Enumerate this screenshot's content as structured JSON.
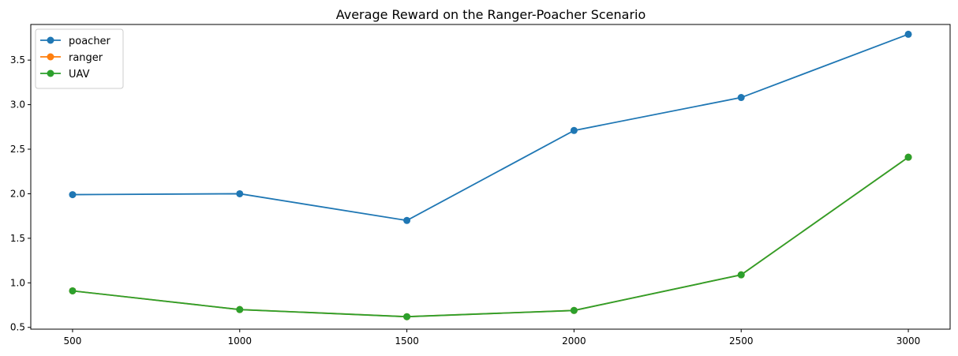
{
  "chart_data": {
    "type": "line",
    "title": "Average Reward on the Ranger-Poacher Scenario",
    "xlabel": "",
    "ylabel": "",
    "x": [
      500,
      1000,
      1500,
      2000,
      2500,
      3000
    ],
    "x_ticks": [
      500,
      1000,
      1500,
      2000,
      2500,
      3000
    ],
    "y_ticks": [
      0.5,
      1.0,
      1.5,
      2.0,
      2.5,
      3.0,
      3.5
    ],
    "y_tick_labels": [
      "0.5",
      "1.0",
      "1.5",
      "2.0",
      "2.5",
      "3.0",
      "3.5"
    ],
    "xlim": [
      375,
      3125
    ],
    "ylim": [
      0.48,
      3.9
    ],
    "grid": false,
    "legend_position": "top-left",
    "marker": "circle",
    "series": [
      {
        "name": "poacher",
        "color": "#1f77b4",
        "values": [
          1.99,
          2.0,
          1.7,
          2.71,
          3.08,
          3.79
        ]
      },
      {
        "name": "ranger",
        "color": "#ff7f0e",
        "values": [
          0.91,
          0.7,
          0.62,
          0.69,
          1.09,
          2.41
        ]
      },
      {
        "name": "UAV",
        "color": "#2ca02c",
        "values": [
          0.91,
          0.7,
          0.62,
          0.69,
          1.09,
          2.41
        ]
      }
    ]
  }
}
